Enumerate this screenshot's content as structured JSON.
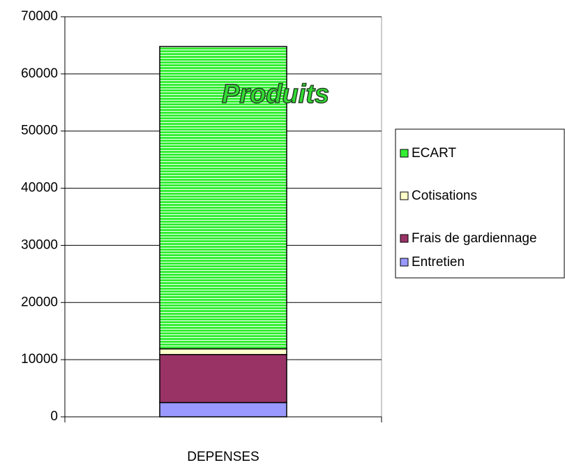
{
  "chart_data": {
    "type": "stacked-bar",
    "annotation": "Produits",
    "categories": [
      "DEPENSES"
    ],
    "series": [
      {
        "name": "Entretien",
        "color": "#9999ff",
        "values": [
          2500
        ]
      },
      {
        "name": "Frais de gardiennage",
        "color": "#993366",
        "values": [
          8400
        ]
      },
      {
        "name": "Cotisations",
        "color": "#ffffcc",
        "values": [
          1000
        ]
      },
      {
        "name": "ECART",
        "color": "#33ee33",
        "values": [
          52900
        ]
      }
    ],
    "ylim": [
      0,
      70000
    ],
    "yticks": [
      0,
      10000,
      20000,
      30000,
      40000,
      50000,
      60000,
      70000
    ],
    "grid": true,
    "legend": "right"
  }
}
